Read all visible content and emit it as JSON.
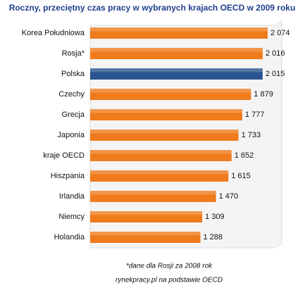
{
  "chart_data": {
    "type": "bar",
    "orientation": "horizontal",
    "title": "Roczny, przeciętny czas pracy w wybranych krajach OECD w 2009 roku",
    "categories": [
      "Korea Południowa",
      "Rosja*",
      "Polska",
      "Czechy",
      "Grecja",
      "Japonia",
      "kraje OECD",
      "Hiszpania",
      "Irlandia",
      "Niemcy",
      "Holandia"
    ],
    "values": [
      2074,
      2016,
      2015,
      1879,
      1777,
      1733,
      1652,
      1615,
      1470,
      1309,
      1288
    ],
    "value_labels": [
      "2 074",
      "2 016",
      "2 015",
      "1 879",
      "1 777",
      "1 733",
      "1 652",
      "1 615",
      "1 470",
      "1 309",
      "1 288"
    ],
    "colors": [
      "#ef7b1c",
      "#ef7b1c",
      "#2a548f",
      "#ef7b1c",
      "#ef7b1c",
      "#ef7b1c",
      "#ef7b1c",
      "#ef7b1c",
      "#ef7b1c",
      "#ef7b1c",
      "#ef7b1c"
    ],
    "footnotes": [
      "*dane dla Rosji za 2008 rok",
      "rynekpracy.pl na podstawie OECD"
    ]
  }
}
